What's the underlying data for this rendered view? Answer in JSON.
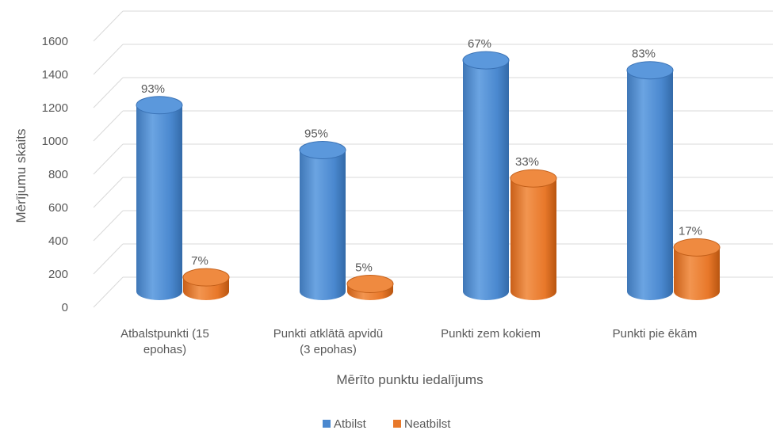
{
  "chart_data": {
    "type": "bar",
    "style": "3d-cylinder",
    "xlabel": "Mērīto punktu iedalījums",
    "ylabel": "Mērījumu skaits",
    "ylim": [
      0,
      1600
    ],
    "yticks": [
      0,
      200,
      400,
      600,
      800,
      1000,
      1200,
      1400,
      1600
    ],
    "categories": [
      [
        "Atbalstpunkti (15",
        "epohas)"
      ],
      [
        "Punkti atklātā apvidū",
        "(3 epohas)"
      ],
      [
        "Punkti zem kokiem"
      ],
      [
        "Punkti pie ēkām"
      ]
    ],
    "series": [
      {
        "name": "Atbilst",
        "color": "#4a88cf",
        "values": [
          1120,
          850,
          1390,
          1330
        ],
        "labels": [
          "93%",
          "95%",
          "67%",
          "83%"
        ]
      },
      {
        "name": "Neatbilst",
        "color": "#e8782a",
        "values": [
          85,
          45,
          680,
          265
        ],
        "labels": [
          "7%",
          "5%",
          "33%",
          "17%"
        ]
      }
    ],
    "grid": true,
    "legend_position": "bottom"
  }
}
